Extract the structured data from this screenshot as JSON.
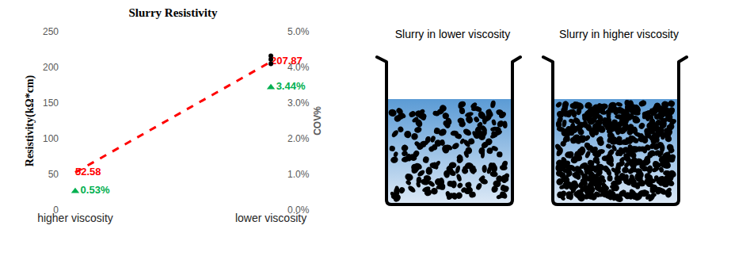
{
  "chart_data": {
    "type": "line",
    "title": "Slurry Resistivity",
    "categories": [
      "higher viscosity",
      "lower viscosity"
    ],
    "y_label": "Resistivity(kΩ*cm)",
    "y2_label": "COV%",
    "ylim": [
      0,
      250
    ],
    "yticks": [
      0,
      50,
      100,
      150,
      200,
      250
    ],
    "y2lim": [
      0,
      5
    ],
    "y2ticks": [
      {
        "value": 0,
        "label": "0.0%"
      },
      {
        "value": 1,
        "label": "1.0%"
      },
      {
        "value": 2,
        "label": "2.0%"
      },
      {
        "value": 3,
        "label": "3.0%"
      },
      {
        "value": 4,
        "label": "4.0%"
      },
      {
        "value": 5,
        "label": "5.0%"
      }
    ],
    "grid": false,
    "series": [
      {
        "type": "line",
        "color": "#ff0000",
        "line_style": "dash",
        "marker": "none",
        "data_labels": true,
        "values": [
          52.58,
          207.87
        ]
      },
      {
        "type": "scatter",
        "axis": "y2",
        "color": "#00b050",
        "marker": "triangle-up",
        "data_labels": true,
        "values": [
          0.53,
          3.44
        ],
        "value_labels": [
          "0.53%",
          "3.44%"
        ]
      },
      {
        "type": "scatter",
        "color": "#000000",
        "marker": "circle",
        "x": [
          "lower viscosity",
          "lower viscosity",
          "lower viscosity"
        ],
        "values": [
          205,
          211,
          216
        ]
      }
    ]
  },
  "diagram": {
    "beakers": [
      {
        "label": "Slurry in lower viscosity",
        "density": "low"
      },
      {
        "label": "Slurry in higher viscosity",
        "density": "high"
      }
    ]
  }
}
